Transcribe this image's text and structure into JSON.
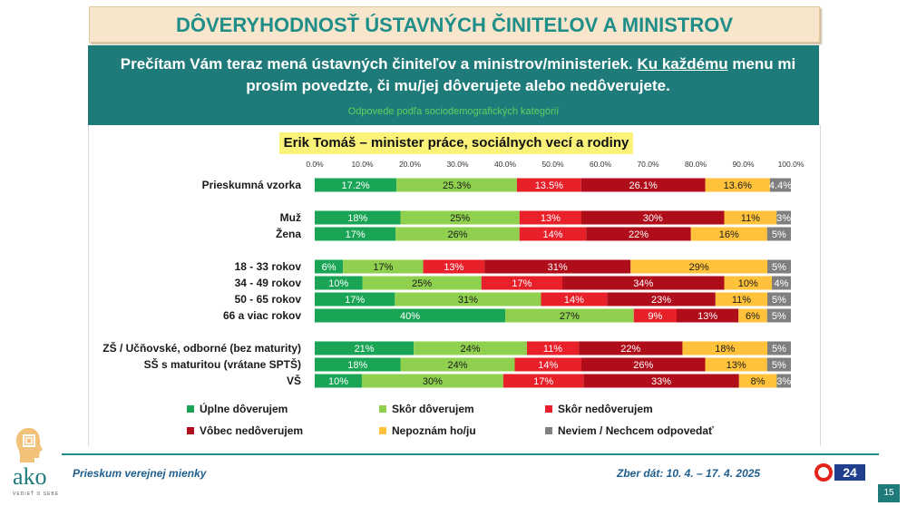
{
  "title": "DÔVERYHODNOSŤ ÚSTAVNÝCH ČINITEĽOV A MINISTROV",
  "question": {
    "part1": "Prečítam Vám teraz mená ústavných činiteľov a ministrov/ministeriek.",
    "underlined": "Ku každému",
    "part2": "menu mi prosím povedzte, či mu/jej dôverujete alebo nedôverujete."
  },
  "subnote": "Odpovede podľa sociodemografických kategórií",
  "subject": "Erik Tomáš – minister práce, sociálnych vecí a rodiny",
  "footer": {
    "left": "Prieskum verejnej mienky",
    "right": "Zber dát: 10. 4. – 17. 4. 2025",
    "page": "15",
    "logo_text": "ako",
    "logo_tagline": "VEDIEŤ O SEBE",
    "tv_logo": "24"
  },
  "colors": {
    "teal": "#1f7a7a",
    "title": "#1f8e88",
    "series": [
      "#1aa556",
      "#8fd14f",
      "#e8202a",
      "#b00d1a",
      "#ffc23a",
      "#7f7f7f"
    ]
  },
  "chart_data": {
    "type": "bar",
    "orientation": "horizontal",
    "stacked": true,
    "xlim": [
      0,
      100
    ],
    "xticks": [
      "0.0%",
      "10.0%",
      "20.0%",
      "30.0%",
      "40.0%",
      "50.0%",
      "60.0%",
      "70.0%",
      "80.0%",
      "90.0%",
      "100.0%"
    ],
    "legend": [
      "Úplne dôverujem",
      "Skôr dôverujem",
      "Skôr nedôverujem",
      "Vôbec nedôverujem",
      "Nepoznám ho/ju",
      "Neviem / Nechcem odpovedať"
    ],
    "rows": [
      {
        "label": "Prieskumná vzorka",
        "values": [
          17.2,
          25.3,
          13.5,
          26.1,
          13.6,
          4.4
        ],
        "labels": [
          "17.2%",
          "25.3%",
          "13.5%",
          "26.1%",
          "13.6%",
          "4.4%"
        ]
      },
      {
        "label": "Muž",
        "values": [
          18,
          25,
          13,
          30,
          11,
          3
        ],
        "labels": [
          "18%",
          "25%",
          "13%",
          "30%",
          "11%",
          "3%"
        ]
      },
      {
        "label": "Žena",
        "values": [
          17,
          26,
          14,
          22,
          16,
          5
        ],
        "labels": [
          "17%",
          "26%",
          "14%",
          "22%",
          "16%",
          "5%"
        ]
      },
      {
        "label": "18 - 33 rokov",
        "values": [
          6,
          17,
          13,
          31,
          29,
          5
        ],
        "labels": [
          "6%",
          "17%",
          "13%",
          "31%",
          "29%",
          "5%"
        ]
      },
      {
        "label": "34 - 49 rokov",
        "values": [
          10,
          25,
          17,
          34,
          10,
          4
        ],
        "labels": [
          "10%",
          "25%",
          "17%",
          "34%",
          "10%",
          "4%"
        ]
      },
      {
        "label": "50 - 65 rokov",
        "values": [
          17,
          31,
          14,
          23,
          11,
          5
        ],
        "labels": [
          "17%",
          "31%",
          "14%",
          "23%",
          "11%",
          "5%"
        ]
      },
      {
        "label": "66 a viac rokov",
        "values": [
          40,
          27,
          9,
          13,
          6,
          5
        ],
        "labels": [
          "40%",
          "27%",
          "9%",
          "13%",
          "6%",
          "5%"
        ]
      },
      {
        "label": "ZŠ / Učňovské, odborné (bez maturity)",
        "values": [
          21,
          24,
          11,
          22,
          18,
          5
        ],
        "labels": [
          "21%",
          "24%",
          "11%",
          "22%",
          "18%",
          "5%"
        ]
      },
      {
        "label": "SŠ s maturitou (vrátane SPTŠ)",
        "values": [
          18,
          24,
          14,
          26,
          13,
          5
        ],
        "labels": [
          "18%",
          "24%",
          "14%",
          "26%",
          "13%",
          "5%"
        ]
      },
      {
        "label": "VŠ",
        "values": [
          10,
          30,
          17,
          33,
          8,
          3
        ],
        "labels": [
          "10%",
          "30%",
          "17%",
          "33%",
          "8%",
          "3%"
        ]
      }
    ]
  }
}
